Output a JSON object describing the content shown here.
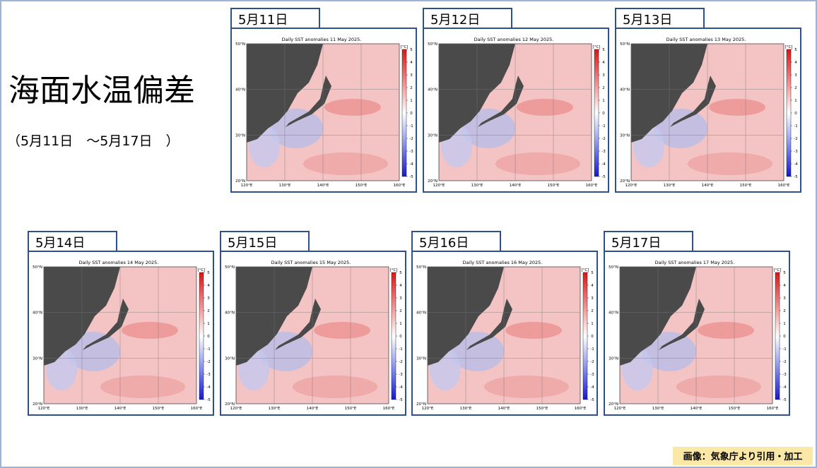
{
  "header": {
    "title": "海面水温偏差",
    "subtitle": "（5月11日　～5月17日　）"
  },
  "map_axes": {
    "lat_labels": [
      "50°N",
      "40°N",
      "30°N",
      "20°N"
    ],
    "lon_labels": [
      "120°E",
      "130°E",
      "140°E",
      "150°E",
      "160°E"
    ],
    "colorbar_unit": "[°C]",
    "colorbar_ticks": [
      5,
      4,
      3,
      2,
      1,
      0,
      -1,
      -2,
      -3,
      -4,
      -5
    ]
  },
  "panels": [
    {
      "label": "5月11日",
      "map_title": "Daily SST anomalies 11 May 2025."
    },
    {
      "label": "5月12日",
      "map_title": "Daily SST anomalies 12 May 2025."
    },
    {
      "label": "5月13日",
      "map_title": "Daily SST anomalies 13 May 2025."
    },
    {
      "label": "5月14日",
      "map_title": "Daily SST anomalies 14 May 2025."
    },
    {
      "label": "5月15日",
      "map_title": "Daily SST anomalies 15 May 2025."
    },
    {
      "label": "5月16日",
      "map_title": "Daily SST anomalies 16 May 2025."
    },
    {
      "label": "5月17日",
      "map_title": "Daily SST anomalies 17 May 2025."
    }
  ],
  "footer": {
    "credit": "画像：気象庁より引用・加工"
  }
}
